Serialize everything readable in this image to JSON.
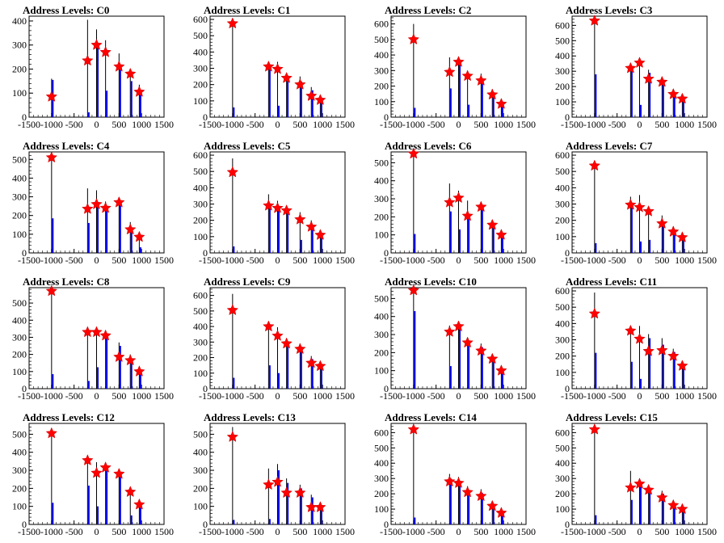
{
  "page": {
    "background": "#ffffff"
  },
  "style": {
    "axis_color": "#000000",
    "black_hist_color": "#000000",
    "blue_hist_color": "#0000ee",
    "marker_color": "#ff0000"
  },
  "chart_data": [
    {
      "title": "Address Levels: C0",
      "type": "histogram-peaks",
      "xlim": [
        -1500,
        1500
      ],
      "ylim": [
        0,
        420
      ],
      "yticks": [
        0,
        100,
        200,
        300,
        400
      ],
      "xtick_labels": [
        "-1500",
        "-1000",
        "-500",
        "0",
        "500",
        "1000",
        "1500"
      ],
      "peaks": [
        {
          "x": -1000,
          "black": 160,
          "blue": 155,
          "star": 85
        },
        {
          "x": -200,
          "black": 405,
          "blue": 20,
          "star": 235
        },
        {
          "x": 0,
          "black": 365,
          "blue": 305,
          "star": 300
        },
        {
          "x": 200,
          "black": 320,
          "blue": 110,
          "star": 270
        },
        {
          "x": 500,
          "black": 265,
          "blue": 210,
          "star": 210
        },
        {
          "x": 750,
          "black": 195,
          "blue": 150,
          "star": 180
        },
        {
          "x": 950,
          "black": 135,
          "blue": 110,
          "star": 105
        }
      ]
    },
    {
      "title": "Address Levels: C1",
      "type": "histogram-peaks",
      "xlim": [
        -1500,
        1500
      ],
      "ylim": [
        0,
        620
      ],
      "yticks": [
        0,
        100,
        200,
        300,
        400,
        500,
        600
      ],
      "xtick_labels": [
        "-1500",
        "-1000",
        "-500",
        "0",
        "500",
        "1000",
        "1500"
      ],
      "peaks": [
        {
          "x": -1000,
          "black": 590,
          "blue": 60,
          "star": 575
        },
        {
          "x": -200,
          "black": 320,
          "blue": 290,
          "star": 310
        },
        {
          "x": 0,
          "black": 340,
          "blue": 70,
          "star": 295
        },
        {
          "x": 200,
          "black": 270,
          "blue": 255,
          "star": 240
        },
        {
          "x": 500,
          "black": 250,
          "blue": 220,
          "star": 200
        },
        {
          "x": 750,
          "black": 185,
          "blue": 165,
          "star": 130
        },
        {
          "x": 950,
          "black": 130,
          "blue": 120,
          "star": 105
        }
      ]
    },
    {
      "title": "Address Levels: C2",
      "type": "histogram-peaks",
      "xlim": [
        -1500,
        1500
      ],
      "ylim": [
        0,
        650
      ],
      "yticks": [
        0,
        100,
        200,
        300,
        400,
        500,
        600
      ],
      "xtick_labels": [
        "-1500",
        "-1000",
        "-500",
        "0",
        "500",
        "1000",
        "1500"
      ],
      "peaks": [
        {
          "x": -1000,
          "black": 600,
          "blue": 60,
          "star": 500
        },
        {
          "x": -200,
          "black": 385,
          "blue": 185,
          "star": 290
        },
        {
          "x": 0,
          "black": 390,
          "blue": 355,
          "star": 355
        },
        {
          "x": 200,
          "black": 290,
          "blue": 80,
          "star": 265
        },
        {
          "x": 500,
          "black": 280,
          "blue": 250,
          "star": 235
        },
        {
          "x": 750,
          "black": 180,
          "blue": 160,
          "star": 145
        },
        {
          "x": 950,
          "black": 110,
          "blue": 100,
          "star": 85
        }
      ]
    },
    {
      "title": "Address Levels: C3",
      "type": "histogram-peaks",
      "xlim": [
        -1500,
        1500
      ],
      "ylim": [
        0,
        660
      ],
      "yticks": [
        0,
        100,
        200,
        300,
        400,
        500,
        600
      ],
      "xtick_labels": [
        "-1500",
        "-1000",
        "-500",
        "0",
        "500",
        "1000",
        "1500"
      ],
      "peaks": [
        {
          "x": -1000,
          "black": 640,
          "blue": 280,
          "star": 630
        },
        {
          "x": -200,
          "black": 335,
          "blue": 305,
          "star": 320
        },
        {
          "x": 0,
          "black": 375,
          "blue": 80,
          "star": 355
        },
        {
          "x": 200,
          "black": 310,
          "blue": 290,
          "star": 250
        },
        {
          "x": 500,
          "black": 260,
          "blue": 230,
          "star": 230
        },
        {
          "x": 750,
          "black": 170,
          "blue": 150,
          "star": 150
        },
        {
          "x": 950,
          "black": 135,
          "blue": 120,
          "star": 120
        }
      ]
    },
    {
      "title": "Address Levels: C4",
      "type": "histogram-peaks",
      "xlim": [
        -1500,
        1500
      ],
      "ylim": [
        0,
        540
      ],
      "yticks": [
        0,
        100,
        200,
        300,
        400,
        500
      ],
      "xtick_labels": [
        "-1500",
        "-1000",
        "-500",
        "0",
        "500",
        "1000",
        "1500"
      ],
      "peaks": [
        {
          "x": -1000,
          "black": 530,
          "blue": 185,
          "star": 510
        },
        {
          "x": -200,
          "black": 345,
          "blue": 160,
          "star": 235
        },
        {
          "x": 0,
          "black": 335,
          "blue": 255,
          "star": 260
        },
        {
          "x": 200,
          "black": 275,
          "blue": 250,
          "star": 240
        },
        {
          "x": 500,
          "black": 280,
          "blue": 255,
          "star": 270
        },
        {
          "x": 750,
          "black": 165,
          "blue": 120,
          "star": 125
        },
        {
          "x": 950,
          "black": 100,
          "blue": 30,
          "star": 85
        }
      ]
    },
    {
      "title": "Address Levels: C5",
      "type": "histogram-peaks",
      "xlim": [
        -1500,
        1500
      ],
      "ylim": [
        0,
        620
      ],
      "yticks": [
        0,
        100,
        200,
        300,
        400,
        500,
        600
      ],
      "xtick_labels": [
        "-1500",
        "-1000",
        "-500",
        "0",
        "500",
        "1000",
        "1500"
      ],
      "peaks": [
        {
          "x": -1000,
          "black": 580,
          "blue": 40,
          "star": 495
        },
        {
          "x": -200,
          "black": 360,
          "blue": 275,
          "star": 290
        },
        {
          "x": 0,
          "black": 320,
          "blue": 285,
          "star": 275
        },
        {
          "x": 200,
          "black": 270,
          "blue": 250,
          "star": 260
        },
        {
          "x": 500,
          "black": 250,
          "blue": 80,
          "star": 205
        },
        {
          "x": 750,
          "black": 200,
          "blue": 170,
          "star": 160
        },
        {
          "x": 950,
          "black": 120,
          "blue": 105,
          "star": 110
        }
      ]
    },
    {
      "title": "Address Levels: C6",
      "type": "histogram-peaks",
      "xlim": [
        -1500,
        1500
      ],
      "ylim": [
        0,
        560
      ],
      "yticks": [
        0,
        100,
        200,
        300,
        400,
        500
      ],
      "xtick_labels": [
        "-1500",
        "-1000",
        "-500",
        "0",
        "500",
        "1000",
        "1500"
      ],
      "peaks": [
        {
          "x": -1000,
          "black": 560,
          "blue": 105,
          "star": 550
        },
        {
          "x": -200,
          "black": 385,
          "blue": 230,
          "star": 280
        },
        {
          "x": 0,
          "black": 345,
          "blue": 130,
          "star": 305
        },
        {
          "x": 200,
          "black": 290,
          "blue": 205,
          "star": 205
        },
        {
          "x": 500,
          "black": 265,
          "blue": 240,
          "star": 255
        },
        {
          "x": 750,
          "black": 170,
          "blue": 155,
          "star": 155
        },
        {
          "x": 950,
          "black": 120,
          "blue": 90,
          "star": 100
        }
      ]
    },
    {
      "title": "Address Levels: C7",
      "type": "histogram-peaks",
      "xlim": [
        -1500,
        1500
      ],
      "ylim": [
        0,
        620
      ],
      "yticks": [
        0,
        100,
        200,
        300,
        400,
        500,
        600
      ],
      "xtick_labels": [
        "-1500",
        "-1000",
        "-500",
        "0",
        "500",
        "1000",
        "1500"
      ],
      "peaks": [
        {
          "x": -1000,
          "black": 560,
          "blue": 60,
          "star": 535
        },
        {
          "x": -200,
          "black": 345,
          "blue": 280,
          "star": 295
        },
        {
          "x": 0,
          "black": 355,
          "blue": 70,
          "star": 280
        },
        {
          "x": 200,
          "black": 270,
          "blue": 80,
          "star": 255
        },
        {
          "x": 500,
          "black": 230,
          "blue": 165,
          "star": 180
        },
        {
          "x": 750,
          "black": 160,
          "blue": 140,
          "star": 130
        },
        {
          "x": 950,
          "black": 120,
          "blue": 105,
          "star": 95
        }
      ]
    },
    {
      "title": "Address Levels: C8",
      "type": "histogram-peaks",
      "xlim": [
        -1500,
        1500
      ],
      "ylim": [
        0,
        590
      ],
      "yticks": [
        0,
        100,
        200,
        300,
        400,
        500
      ],
      "xtick_labels": [
        "-1500",
        "-1000",
        "-500",
        "0",
        "500",
        "1000",
        "1500"
      ],
      "peaks": [
        {
          "x": -1000,
          "black": 590,
          "blue": 85,
          "star": 570
        },
        {
          "x": -200,
          "black": 340,
          "blue": 45,
          "star": 330
        },
        {
          "x": 0,
          "black": 335,
          "blue": 125,
          "star": 330
        },
        {
          "x": 200,
          "black": 330,
          "blue": 305,
          "star": 310
        },
        {
          "x": 500,
          "black": 270,
          "blue": 250,
          "star": 185
        },
        {
          "x": 750,
          "black": 200,
          "blue": 175,
          "star": 165
        },
        {
          "x": 950,
          "black": 125,
          "blue": 90,
          "star": 100
        }
      ]
    },
    {
      "title": "Address Levels: C9",
      "type": "histogram-peaks",
      "xlim": [
        -1500,
        1500
      ],
      "ylim": [
        0,
        650
      ],
      "yticks": [
        0,
        100,
        200,
        300,
        400,
        500,
        600
      ],
      "xtick_labels": [
        "-1500",
        "-1000",
        "-500",
        "0",
        "500",
        "1000",
        "1500"
      ],
      "peaks": [
        {
          "x": -1000,
          "black": 610,
          "blue": 70,
          "star": 505
        },
        {
          "x": -200,
          "black": 405,
          "blue": 150,
          "star": 400
        },
        {
          "x": 0,
          "black": 395,
          "blue": 100,
          "star": 340
        },
        {
          "x": 200,
          "black": 325,
          "blue": 300,
          "star": 290
        },
        {
          "x": 500,
          "black": 290,
          "blue": 270,
          "star": 255
        },
        {
          "x": 750,
          "black": 210,
          "blue": 190,
          "star": 165
        },
        {
          "x": 950,
          "black": 170,
          "blue": 150,
          "star": 145
        }
      ]
    },
    {
      "title": "Address Levels: C10",
      "type": "histogram-peaks",
      "xlim": [
        -1500,
        1500
      ],
      "ylim": [
        0,
        560
      ],
      "yticks": [
        0,
        100,
        200,
        300,
        400,
        500
      ],
      "xtick_labels": [
        "-1500",
        "-1000",
        "-500",
        "0",
        "500",
        "1000",
        "1500"
      ],
      "peaks": [
        {
          "x": -1000,
          "black": 560,
          "blue": 430,
          "star": 545
        },
        {
          "x": -200,
          "black": 350,
          "blue": 125,
          "star": 315
        },
        {
          "x": 0,
          "black": 350,
          "blue": 340,
          "star": 345
        },
        {
          "x": 200,
          "black": 280,
          "blue": 260,
          "star": 255
        },
        {
          "x": 500,
          "black": 250,
          "blue": 230,
          "star": 210
        },
        {
          "x": 750,
          "black": 190,
          "blue": 170,
          "star": 165
        },
        {
          "x": 950,
          "black": 110,
          "blue": 100,
          "star": 100
        }
      ]
    },
    {
      "title": "Address Levels: C11",
      "type": "histogram-peaks",
      "xlim": [
        -1500,
        1500
      ],
      "ylim": [
        0,
        620
      ],
      "yticks": [
        0,
        100,
        200,
        300,
        400,
        500,
        600
      ],
      "xtick_labels": [
        "-1500",
        "-1000",
        "-500",
        "0",
        "500",
        "1000",
        "1500"
      ],
      "peaks": [
        {
          "x": -1000,
          "black": 590,
          "blue": 220,
          "star": 460
        },
        {
          "x": -200,
          "black": 375,
          "blue": 165,
          "star": 355
        },
        {
          "x": 0,
          "black": 385,
          "blue": 60,
          "star": 305
        },
        {
          "x": 200,
          "black": 335,
          "blue": 310,
          "star": 230
        },
        {
          "x": 500,
          "black": 310,
          "blue": 270,
          "star": 235
        },
        {
          "x": 750,
          "black": 245,
          "blue": 225,
          "star": 200
        },
        {
          "x": 950,
          "black": 140,
          "blue": 125,
          "star": 140
        }
      ]
    },
    {
      "title": "Address Levels: C12",
      "type": "histogram-peaks",
      "xlim": [
        -1500,
        1500
      ],
      "ylim": [
        0,
        560
      ],
      "yticks": [
        0,
        100,
        200,
        300,
        400,
        500
      ],
      "xtick_labels": [
        "-1500",
        "-1000",
        "-500",
        "0",
        "500",
        "1000",
        "1500"
      ],
      "peaks": [
        {
          "x": -1000,
          "black": 520,
          "blue": 120,
          "star": 505
        },
        {
          "x": -200,
          "black": 350,
          "blue": 215,
          "star": 355
        },
        {
          "x": 0,
          "black": 345,
          "blue": 100,
          "star": 285
        },
        {
          "x": 200,
          "black": 320,
          "blue": 300,
          "star": 315
        },
        {
          "x": 500,
          "black": 290,
          "blue": 270,
          "star": 280
        },
        {
          "x": 750,
          "black": 185,
          "blue": 50,
          "star": 180
        },
        {
          "x": 950,
          "black": 120,
          "blue": 100,
          "star": 110
        }
      ]
    },
    {
      "title": "Address Levels: C13",
      "type": "histogram-peaks",
      "xlim": [
        -1500,
        1500
      ],
      "ylim": [
        0,
        560
      ],
      "yticks": [
        0,
        100,
        200,
        300,
        400,
        500
      ],
      "xtick_labels": [
        "-1500",
        "-1000",
        "-500",
        "0",
        "500",
        "1000",
        "1500"
      ],
      "peaks": [
        {
          "x": -1000,
          "black": 540,
          "blue": 25,
          "star": 485
        },
        {
          "x": -200,
          "black": 310,
          "blue": 30,
          "star": 220
        },
        {
          "x": 0,
          "black": 335,
          "blue": 300,
          "star": 235
        },
        {
          "x": 200,
          "black": 255,
          "blue": 230,
          "star": 175
        },
        {
          "x": 500,
          "black": 220,
          "blue": 200,
          "star": 175
        },
        {
          "x": 750,
          "black": 165,
          "blue": 150,
          "star": 95
        },
        {
          "x": 950,
          "black": 110,
          "blue": 90,
          "star": 95
        }
      ]
    },
    {
      "title": "Address Levels: C14",
      "type": "histogram-peaks",
      "xlim": [
        -1500,
        1500
      ],
      "ylim": [
        0,
        660
      ],
      "yticks": [
        0,
        100,
        200,
        300,
        400,
        500,
        600
      ],
      "xtick_labels": [
        "-1500",
        "-1000",
        "-500",
        "0",
        "500",
        "1000",
        "1500"
      ],
      "peaks": [
        {
          "x": -1000,
          "black": 650,
          "blue": 45,
          "star": 620
        },
        {
          "x": -200,
          "black": 330,
          "blue": 300,
          "star": 280
        },
        {
          "x": 0,
          "black": 310,
          "blue": 280,
          "star": 270
        },
        {
          "x": 200,
          "black": 250,
          "blue": 225,
          "star": 210
        },
        {
          "x": 500,
          "black": 230,
          "blue": 205,
          "star": 185
        },
        {
          "x": 750,
          "black": 140,
          "blue": 125,
          "star": 120
        },
        {
          "x": 950,
          "black": 100,
          "blue": 80,
          "star": 75
        }
      ]
    },
    {
      "title": "Address Levels: C15",
      "type": "histogram-peaks",
      "xlim": [
        -1500,
        1500
      ],
      "ylim": [
        0,
        660
      ],
      "yticks": [
        0,
        100,
        200,
        300,
        400,
        500,
        600
      ],
      "xtick_labels": [
        "-1500",
        "-1000",
        "-500",
        "0",
        "500",
        "1000",
        "1500"
      ],
      "peaks": [
        {
          "x": -1000,
          "black": 650,
          "blue": 60,
          "star": 620
        },
        {
          "x": -200,
          "black": 350,
          "blue": 160,
          "star": 240
        },
        {
          "x": 0,
          "black": 300,
          "blue": 260,
          "star": 265
        },
        {
          "x": 200,
          "black": 260,
          "blue": 235,
          "star": 225
        },
        {
          "x": 500,
          "black": 220,
          "blue": 200,
          "star": 175
        },
        {
          "x": 750,
          "black": 150,
          "blue": 135,
          "star": 125
        },
        {
          "x": 950,
          "black": 115,
          "blue": 100,
          "star": 100
        }
      ]
    }
  ]
}
